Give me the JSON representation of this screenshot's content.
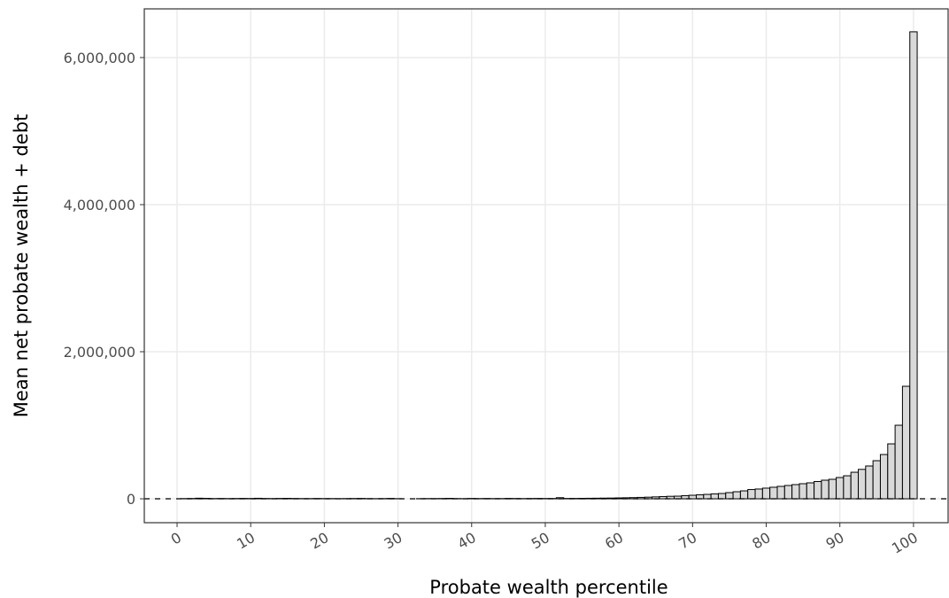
{
  "chart_data": {
    "type": "bar",
    "x_label": "Probate wealth percentile",
    "y_label": "Mean net probate wealth + debt",
    "x": [
      1,
      2,
      3,
      4,
      5,
      6,
      7,
      8,
      9,
      10,
      11,
      12,
      13,
      14,
      15,
      16,
      17,
      18,
      19,
      20,
      21,
      22,
      23,
      24,
      25,
      26,
      27,
      28,
      29,
      30,
      31,
      32,
      33,
      34,
      35,
      36,
      37,
      38,
      39,
      40,
      41,
      42,
      43,
      44,
      45,
      46,
      47,
      48,
      49,
      50,
      51,
      52,
      53,
      54,
      55,
      56,
      57,
      58,
      59,
      60,
      61,
      62,
      63,
      64,
      65,
      66,
      67,
      68,
      69,
      70,
      71,
      72,
      73,
      74,
      75,
      76,
      77,
      78,
      79,
      80,
      81,
      82,
      83,
      84,
      85,
      86,
      87,
      88,
      89,
      90,
      91,
      92,
      93,
      94,
      95,
      96,
      97,
      98,
      99,
      100
    ],
    "values": [
      3000,
      4000,
      8000,
      6000,
      3000,
      4000,
      3000,
      4000,
      5000,
      4000,
      7000,
      4000,
      3000,
      5000,
      6000,
      4000,
      3000,
      3000,
      4000,
      3000,
      3000,
      2000,
      3000,
      4000,
      5000,
      3000,
      2000,
      3000,
      5000,
      2000,
      0,
      0,
      2000,
      3000,
      3000,
      4000,
      6000,
      3000,
      2000,
      5000,
      3000,
      4000,
      3000,
      3000,
      5000,
      4000,
      3000,
      4000,
      5000,
      4000,
      4000,
      15000,
      4500,
      5000,
      6000,
      7000,
      8000,
      9000,
      10000,
      12000,
      14000,
      16000,
      19000,
      22000,
      26000,
      30000,
      34000,
      36000,
      42000,
      48000,
      54000,
      60000,
      66000,
      72000,
      84000,
      96000,
      108000,
      126000,
      133000,
      145000,
      157000,
      169000,
      181000,
      193000,
      205000,
      217000,
      235000,
      253000,
      265000,
      289000,
      313000,
      361000,
      400000,
      446000,
      518000,
      602000,
      747000,
      1000000,
      1530000,
      6350000
    ],
    "color": "#d9d9d9",
    "edge_color": "#000000",
    "hline": 0,
    "xlim": [
      -4.45,
      104.7
    ],
    "ylim": [
      -325000,
      6662000
    ],
    "xticks": [
      0,
      10,
      20,
      30,
      40,
      50,
      60,
      70,
      80,
      90,
      100
    ],
    "yticks": [
      0,
      {
        "value": 2000000,
        "label": "2,000,000"
      },
      {
        "value": 4000000,
        "label": "4,000,000"
      },
      {
        "value": 6000000,
        "label": "6,000,000"
      }
    ],
    "grid": true
  }
}
